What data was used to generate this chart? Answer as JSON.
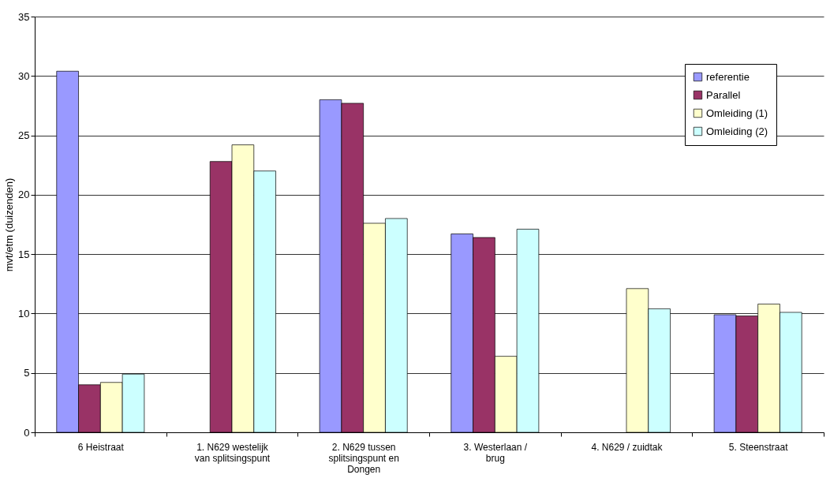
{
  "chart_data": {
    "type": "bar",
    "ylabel": "mvt/etm (duizenden)",
    "categories": [
      "6 Heistraat",
      "1. N629 westelijk van splitsingspunt",
      "2. N629 tussen splitsingspunt en Dongen",
      "3. Westerlaan / brug",
      "4. N629 / zuidtak",
      "5. Steenstraat"
    ],
    "series": [
      {
        "name": "referentie",
        "color": "#9999ff",
        "values": [
          30.4,
          null,
          28.0,
          16.7,
          null,
          9.9
        ]
      },
      {
        "name": "Parallel",
        "color": "#993366",
        "values": [
          4.0,
          22.8,
          27.7,
          16.4,
          null,
          9.8
        ]
      },
      {
        "name": "Omleiding (1)",
        "color": "#ffffcc",
        "values": [
          4.2,
          24.2,
          17.6,
          6.4,
          12.1,
          10.8
        ]
      },
      {
        "name": "Omleiding (2)",
        "color": "#ccffff",
        "values": [
          4.9,
          22.0,
          18.0,
          17.1,
          10.4,
          10.1
        ]
      }
    ],
    "ylim": [
      0,
      35
    ],
    "yticks": [
      0,
      5,
      10,
      15,
      20,
      25,
      30,
      35
    ],
    "grid": "y",
    "legend": "top right"
  }
}
